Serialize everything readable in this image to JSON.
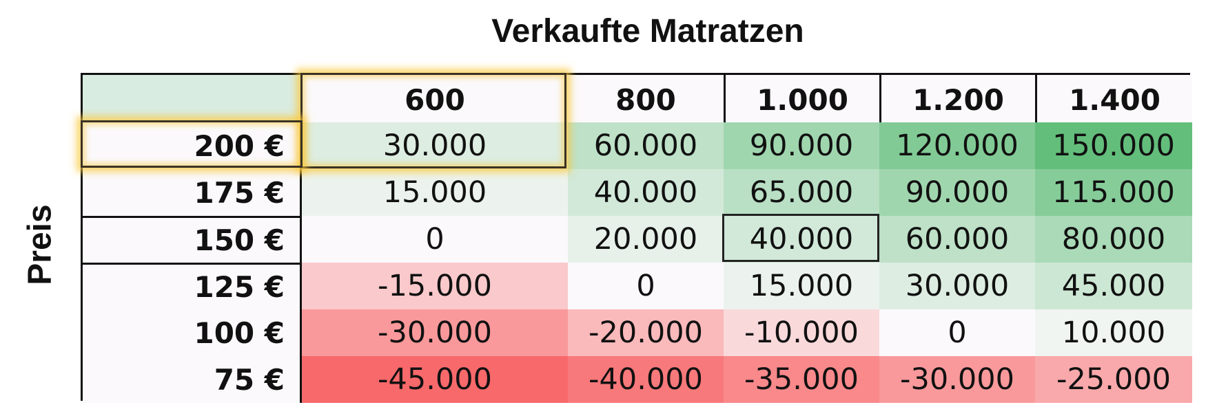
{
  "chart_data": {
    "type": "heatmap",
    "title": "Verkaufte Matratzen",
    "xlabel": "",
    "ylabel": "Preis",
    "columns": [
      "600",
      "800",
      "1.000",
      "1.200",
      "1.400"
    ],
    "rows": [
      {
        "label": "200 €",
        "values": [
          30000,
          60000,
          90000,
          120000,
          150000
        ],
        "labels": [
          "30.000",
          "60.000",
          "90.000",
          "120.000",
          "150.000"
        ]
      },
      {
        "label": "175 €",
        "values": [
          15000,
          40000,
          65000,
          90000,
          115000
        ],
        "labels": [
          "15.000",
          "40.000",
          "65.000",
          "90.000",
          "115.000"
        ]
      },
      {
        "label": "150 €",
        "values": [
          0,
          20000,
          40000,
          60000,
          80000
        ],
        "labels": [
          "0",
          "20.000",
          "40.000",
          "60.000",
          "80.000"
        ]
      },
      {
        "label": "125 €",
        "values": [
          -15000,
          0,
          15000,
          30000,
          45000
        ],
        "labels": [
          "-15.000",
          "0",
          "15.000",
          "30.000",
          "45.000"
        ]
      },
      {
        "label": "100 €",
        "values": [
          -30000,
          -20000,
          -10000,
          0,
          10000
        ],
        "labels": [
          "-30.000",
          "-20.000",
          "-10.000",
          "0",
          "10.000"
        ]
      },
      {
        "label": "75 €",
        "values": [
          -45000,
          -40000,
          -35000,
          -30000,
          -25000
        ],
        "labels": [
          "-45.000",
          "-40.000",
          "-35.000",
          "-30.000",
          "-25.000"
        ]
      }
    ],
    "color_scale": {
      "positive_max": "#63be7b",
      "neutral": "#fbf9fb",
      "negative_max": "#f8696b"
    },
    "highlight_color": "#f5c842"
  }
}
